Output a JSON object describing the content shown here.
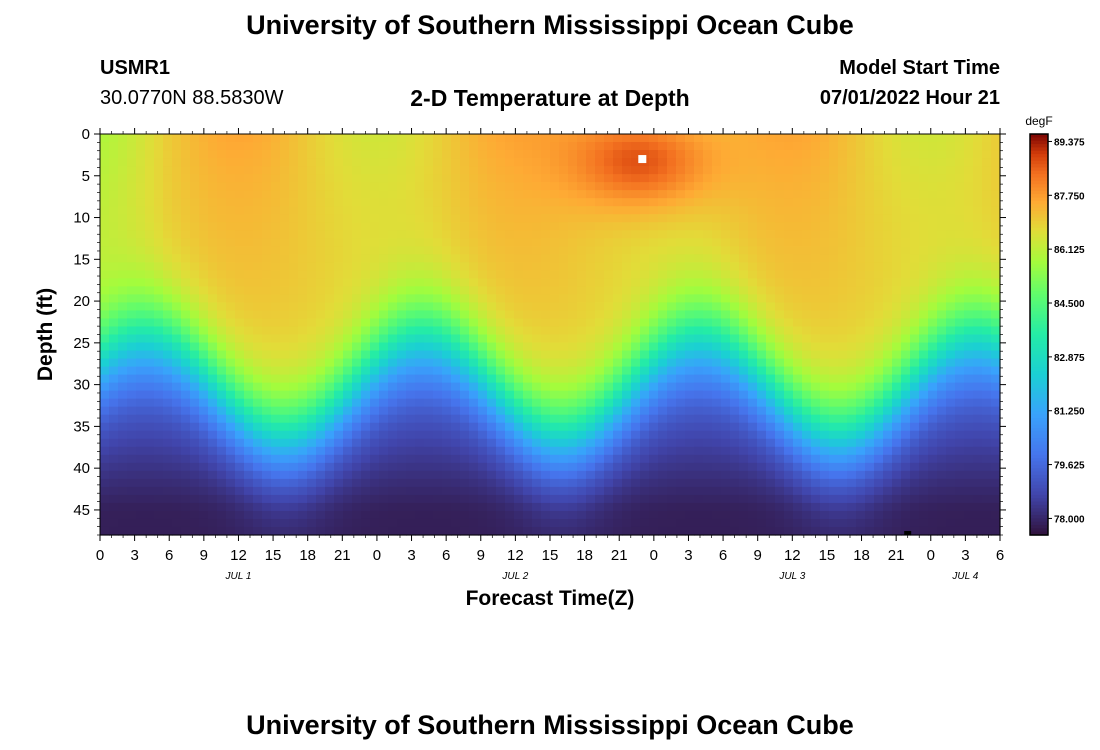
{
  "page_title": "University of Southern Mississippi Ocean Cube",
  "footer_title": "University of Southern Mississippi Ocean Cube",
  "station": {
    "id": "USMR1",
    "coords": "30.0770N  88.5830W"
  },
  "model": {
    "label": "Model Start Time",
    "start": "07/01/2022 Hour 21"
  },
  "chart_data": {
    "type": "heatmap",
    "title": "2-D Temperature at Depth",
    "xlabel": "Forecast Time(Z)",
    "ylabel": "Depth (ft)",
    "x_ticks": [
      "0",
      "3",
      "6",
      "9",
      "12",
      "15",
      "18",
      "21",
      "0",
      "3",
      "6",
      "9",
      "12",
      "15",
      "18",
      "21",
      "0",
      "3",
      "6",
      "9",
      "12",
      "15",
      "18",
      "21",
      "0",
      "3",
      "6"
    ],
    "x_range_hours": [
      0,
      78
    ],
    "date_labels": [
      {
        "text": "JUL 1",
        "hour": 12
      },
      {
        "text": "JUL 2",
        "hour": 36
      },
      {
        "text": "JUL 3",
        "hour": 60
      },
      {
        "text": "JUL 4",
        "hour": 75
      }
    ],
    "y_ticks": [
      0,
      5,
      10,
      15,
      20,
      25,
      30,
      35,
      40,
      45
    ],
    "y_range_ft": [
      0,
      48
    ],
    "colorbar": {
      "unit": "degF",
      "min": 77.5,
      "max": 89.6,
      "ticks": [
        "89.375",
        "87.750",
        "86.125",
        "84.500",
        "82.875",
        "81.250",
        "79.625",
        "78.000"
      ],
      "tick_values": [
        89.375,
        87.75,
        86.125,
        84.5,
        82.875,
        81.25,
        79.625,
        78.0
      ]
    },
    "thermocline": {
      "base_depth_ft": 30,
      "amplitude_ft": 6,
      "period_hours": 24,
      "phase_hours": 10,
      "width_ft": 3.5
    },
    "surface_temp": {
      "warm_core_temp": 89.2,
      "warm_core_hour": 47,
      "warm_core_depth_ft": 3,
      "background_temp": 87.0
    },
    "deep_temp": 77.8,
    "markers": [
      {
        "hour": 47,
        "depth_ft": 3,
        "color": "#ffffff"
      },
      {
        "hour": 70,
        "depth_ft": 48,
        "color": "#000000"
      }
    ]
  }
}
